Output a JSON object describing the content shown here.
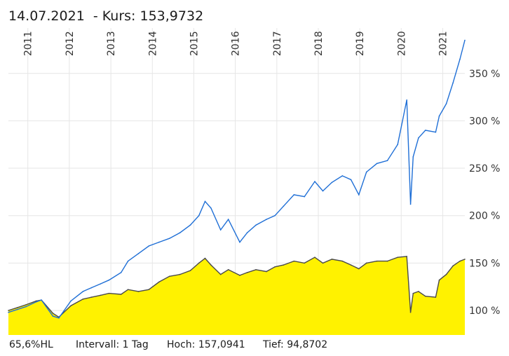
{
  "header": {
    "date": "14.07.2021",
    "price_label": "Kurs:",
    "price": "153,9732"
  },
  "footer": {
    "hl": "65,6%HL",
    "interval": "Intervall: 1 Tag",
    "high": "Hoch: 157,0941",
    "low": "Tief: 94,8702"
  },
  "colors": {
    "fund_fill": "#fff200",
    "fund_line": "#4a4a4a",
    "benchmark_line": "#1f6fd6",
    "grid": "#e6e6e6"
  },
  "chart_data": {
    "type": "area",
    "title": "14.07.2021  - Kurs: 153,9732",
    "x_tick_labels": [
      "2011",
      "2012",
      "2013",
      "2014",
      "2015",
      "2016",
      "2017",
      "2018",
      "2019",
      "2020",
      "2021"
    ],
    "y_tick_labels": [
      "100 %",
      "150 %",
      "200 %",
      "250 %",
      "300 %",
      "350 %"
    ],
    "y_ticks": [
      100,
      150,
      200,
      250,
      300,
      350
    ],
    "xlim": [
      "2010-07-14",
      "2021-07-14"
    ],
    "ylim": [
      80,
      400
    ],
    "grid": true,
    "series": [
      {
        "kind": "area",
        "color": "#fff200",
        "x": [
          "2010-07-14",
          "2010-10-01",
          "2010-12-15",
          "2011-03-15",
          "2011-05-01",
          "2011-08-10",
          "2011-10-01",
          "2012-01-15",
          "2012-05-01",
          "2012-07-15",
          "2012-10-01",
          "2012-12-15",
          "2013-04-01",
          "2013-06-01",
          "2013-09-01",
          "2013-12-01",
          "2014-03-01",
          "2014-06-01",
          "2014-09-01",
          "2014-12-01",
          "2015-02-15",
          "2015-04-10",
          "2015-06-01",
          "2015-08-25",
          "2015-11-01",
          "2016-02-10",
          "2016-04-15",
          "2016-07-01",
          "2016-10-01",
          "2016-12-15",
          "2017-03-01",
          "2017-06-01",
          "2017-09-01",
          "2017-12-01",
          "2018-02-10",
          "2018-05-01",
          "2018-08-01",
          "2018-10-15",
          "2018-12-24",
          "2019-03-01",
          "2019-06-01",
          "2019-09-01",
          "2019-12-01",
          "2020-02-19",
          "2020-03-23",
          "2020-04-15",
          "2020-06-01",
          "2020-08-01",
          "2020-10-30",
          "2020-12-01",
          "2021-02-01",
          "2021-04-01",
          "2021-06-01",
          "2021-07-14"
        ],
        "values": [
          100,
          103,
          106,
          110,
          111,
          97,
          93,
          105,
          112,
          114,
          116,
          118,
          117,
          122,
          120,
          122,
          130,
          136,
          138,
          142,
          150,
          155,
          148,
          138,
          143,
          137,
          140,
          143,
          141,
          146,
          148,
          152,
          150,
          156,
          150,
          154,
          152,
          148,
          144,
          150,
          152,
          152,
          156,
          157,
          98,
          118,
          120,
          115,
          114,
          132,
          138,
          147,
          152,
          154
        ]
      },
      {
        "kind": "line",
        "color": "#1f6fd6",
        "x": [
          "2010-07-14",
          "2010-10-01",
          "2010-12-15",
          "2011-03-15",
          "2011-05-01",
          "2011-08-10",
          "2011-10-01",
          "2012-01-15",
          "2012-05-01",
          "2012-07-15",
          "2012-10-01",
          "2012-12-15",
          "2013-04-01",
          "2013-06-01",
          "2013-09-01",
          "2013-12-01",
          "2014-03-01",
          "2014-06-01",
          "2014-09-01",
          "2014-12-01",
          "2015-02-15",
          "2015-04-10",
          "2015-06-01",
          "2015-08-25",
          "2015-11-01",
          "2016-02-10",
          "2016-04-15",
          "2016-07-01",
          "2016-10-01",
          "2016-12-15",
          "2017-03-01",
          "2017-06-01",
          "2017-09-01",
          "2017-12-01",
          "2018-02-10",
          "2018-05-01",
          "2018-08-01",
          "2018-10-15",
          "2018-12-24",
          "2019-03-01",
          "2019-06-01",
          "2019-09-01",
          "2019-12-01",
          "2020-02-19",
          "2020-03-23",
          "2020-04-15",
          "2020-06-01",
          "2020-08-01",
          "2020-10-30",
          "2020-12-01",
          "2021-02-01",
          "2021-04-01",
          "2021-06-01",
          "2021-07-14"
        ],
        "values": [
          98,
          101,
          104,
          109,
          111,
          94,
          92,
          110,
          120,
          124,
          128,
          132,
          140,
          152,
          160,
          168,
          172,
          176,
          182,
          190,
          200,
          215,
          208,
          185,
          196,
          172,
          182,
          190,
          196,
          200,
          210,
          222,
          220,
          236,
          226,
          235,
          242,
          238,
          222,
          246,
          255,
          258,
          275,
          322,
          212,
          262,
          282,
          290,
          288,
          305,
          318,
          340,
          365,
          385
        ]
      }
    ]
  }
}
